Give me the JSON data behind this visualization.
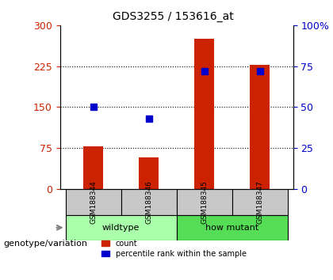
{
  "title": "GDS3255 / 153616_at",
  "samples": [
    "GSM188344",
    "GSM188346",
    "GSM188345",
    "GSM188347"
  ],
  "counts": [
    78,
    58,
    275,
    228
  ],
  "percentiles": [
    50,
    43,
    72,
    72
  ],
  "groups": [
    {
      "label": "wildtype",
      "indices": [
        0,
        1
      ],
      "color": "#90EE90"
    },
    {
      "label": "how mutant",
      "indices": [
        2,
        3
      ],
      "color": "#00CC00"
    }
  ],
  "bar_color": "#CC2200",
  "percentile_color": "#0000CC",
  "left_yticks": [
    0,
    75,
    150,
    225,
    300
  ],
  "right_yticks": [
    0,
    25,
    50,
    75,
    100
  ],
  "right_ytick_labels": [
    "0",
    "25",
    "50",
    "75",
    "100%"
  ],
  "ylim_left": [
    0,
    300
  ],
  "ylim_right": [
    0,
    100
  ],
  "bar_width": 0.35,
  "legend_label_count": "count",
  "legend_label_percentile": "percentile rank within the sample",
  "group_label": "genotype/variation",
  "background_color": "#FFFFFF",
  "plot_bg_color": "#E8E8E8",
  "group_wildtype_color": "#AAFFAA",
  "group_howmutant_color": "#55DD55"
}
